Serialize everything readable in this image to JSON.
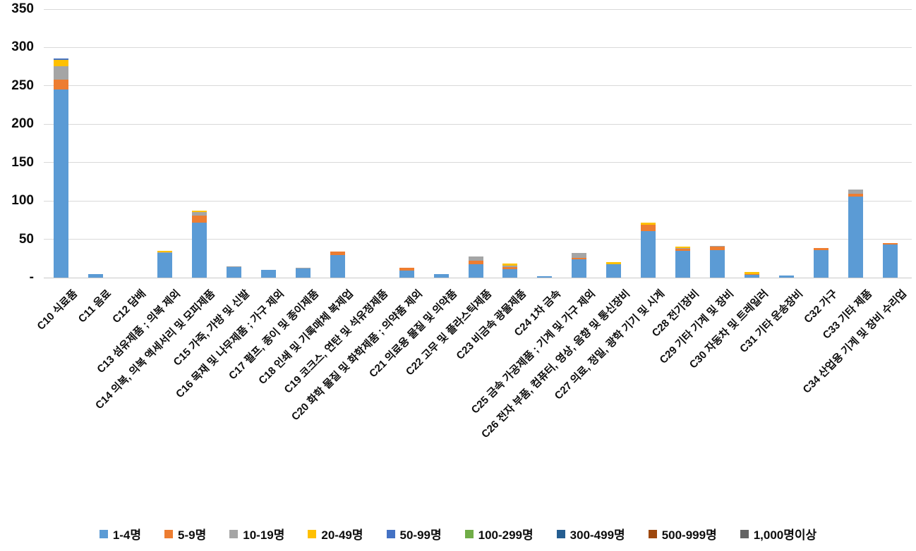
{
  "chart_data": {
    "type": "bar",
    "stacked": true,
    "title": "",
    "xlabel": "",
    "ylabel": "",
    "ylim": [
      0,
      350
    ],
    "grid": true,
    "legend_position": "bottom",
    "yticks": [
      {
        "value": 0,
        "label": "-"
      },
      {
        "value": 50,
        "label": "50"
      },
      {
        "value": 100,
        "label": "100"
      },
      {
        "value": 150,
        "label": "150"
      },
      {
        "value": 200,
        "label": "200"
      },
      {
        "value": 250,
        "label": "250"
      },
      {
        "value": 300,
        "label": "300"
      },
      {
        "value": 350,
        "label": "350"
      }
    ],
    "categories": [
      "C10 식료품",
      "C11 음료",
      "C12 담배",
      "C13 섬유제품 ; 의복 제외",
      "C14 의복, 의복 액세서리 및 모피제품",
      "C15 가죽, 가방 및 신발",
      "C16 목재 및 나무제품 ; 가구 제외",
      "C17 펄프, 종이 및 종이제품",
      "C18 인쇄 및 기록매체 복제업",
      "C19 코크스, 연탄 및 석유정제품",
      "C20 화학 물질 및 화학제품 ; 의약품 제외",
      "C21 의료용 물질 및 의약품",
      "C22 고무 및 플라스틱제품",
      "C23 비금속 광물제품",
      "C24 1차 금속",
      "C25 금속 가공제품 ; 기계 및 가구 제외",
      "C26 전자 부품, 컴퓨터, 영상, 음향 및 통신장비",
      "C27 의료, 정밀, 광학 기기 및 시계",
      "C28 전기장비",
      "C29 기타 기계 및 장비",
      "C30 자동차 및 트레일러",
      "C31 기타 운송장비",
      "C32 가구",
      "C33 기타 제품",
      "C34 산업용 기계 및 장비 수리업"
    ],
    "series": [
      {
        "name": "1-4명",
        "color": "#5B9BD5",
        "values": [
          245,
          5,
          0,
          32,
          72,
          14,
          10,
          12,
          29,
          0,
          9,
          5,
          17,
          11,
          2,
          24,
          17,
          61,
          35,
          36,
          4,
          3,
          36,
          106,
          43
        ]
      },
      {
        "name": "5-9명",
        "color": "#ED7D31",
        "values": [
          13,
          0,
          0,
          0,
          9,
          0,
          0,
          0,
          5,
          0,
          4,
          0,
          5,
          3,
          0,
          2,
          0,
          8,
          3,
          4,
          1,
          0,
          3,
          3,
          2
        ]
      },
      {
        "name": "10-19명",
        "color": "#A5A5A5",
        "values": [
          18,
          0,
          0,
          1,
          4,
          1,
          0,
          1,
          0,
          0,
          0,
          0,
          6,
          2,
          0,
          6,
          0,
          0,
          1,
          1,
          0,
          0,
          0,
          6,
          0
        ]
      },
      {
        "name": "20-49명",
        "color": "#FFC000",
        "values": [
          8,
          0,
          0,
          2,
          2,
          0,
          0,
          0,
          0,
          0,
          0,
          0,
          0,
          2,
          0,
          0,
          3,
          3,
          1,
          0,
          2,
          0,
          0,
          0,
          0
        ]
      },
      {
        "name": "50-99명",
        "color": "#4472C4",
        "values": [
          2,
          0,
          0,
          0,
          0,
          0,
          0,
          0,
          0,
          0,
          0,
          0,
          0,
          0,
          0,
          0,
          0,
          0,
          0,
          0,
          0,
          0,
          0,
          0,
          0
        ]
      },
      {
        "name": "100-299명",
        "color": "#70AD47",
        "values": [
          0,
          0,
          0,
          0,
          0,
          0,
          0,
          0,
          0,
          0,
          0,
          0,
          0,
          0,
          0,
          0,
          0,
          0,
          0,
          0,
          0,
          0,
          0,
          0,
          0
        ]
      },
      {
        "name": "300-499명",
        "color": "#255E91",
        "values": [
          0,
          0,
          0,
          0,
          0,
          0,
          0,
          0,
          0,
          0,
          0,
          0,
          0,
          0,
          0,
          0,
          0,
          0,
          0,
          0,
          0,
          0,
          0,
          0,
          0
        ]
      },
      {
        "name": "500-999명",
        "color": "#9E480E",
        "values": [
          0,
          0,
          0,
          0,
          0,
          0,
          0,
          0,
          0,
          0,
          0,
          0,
          0,
          0,
          0,
          0,
          0,
          0,
          0,
          0,
          0,
          0,
          0,
          0,
          0
        ]
      },
      {
        "name": "1,000명이상",
        "color": "#636363",
        "values": [
          0,
          0,
          0,
          0,
          0,
          0,
          0,
          0,
          0,
          0,
          0,
          0,
          0,
          0,
          0,
          0,
          0,
          0,
          0,
          0,
          0,
          0,
          0,
          0,
          0
        ]
      }
    ]
  }
}
